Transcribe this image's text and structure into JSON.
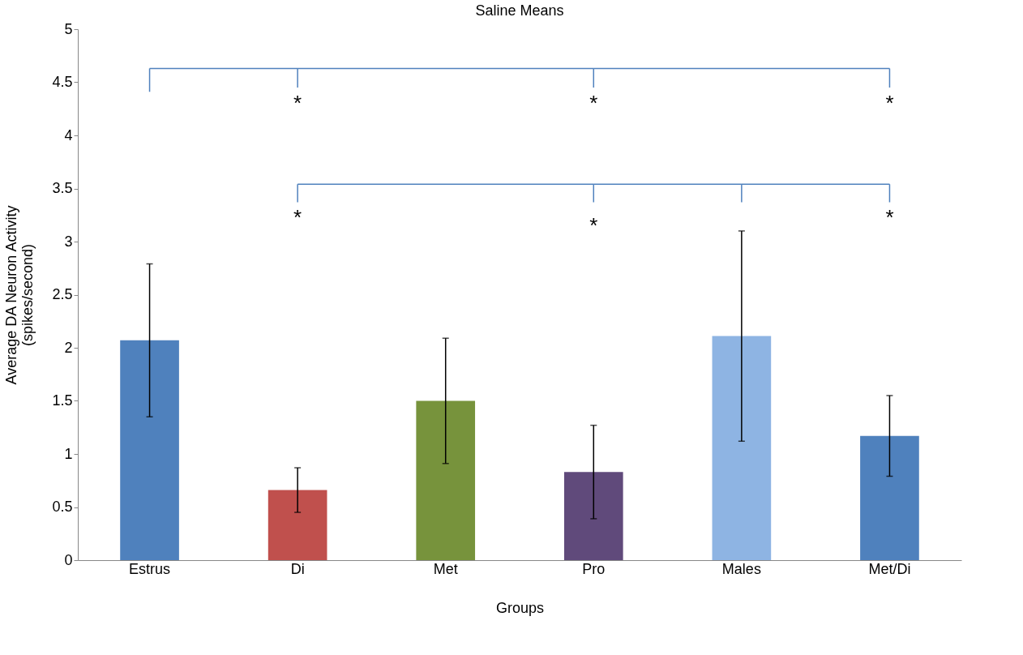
{
  "chart_data": {
    "type": "bar",
    "title": "Saline Means",
    "xlabel": "Groups",
    "ylabel": "Average DA Neuron Activity\n(spikes/second)",
    "categories": [
      "Estrus",
      "Di",
      "Met",
      "Pro",
      "Males",
      "Met/Di"
    ],
    "values": [
      2.07,
      0.66,
      1.5,
      0.83,
      2.11,
      1.17
    ],
    "errors": [
      0.72,
      0.21,
      0.59,
      0.44,
      0.99,
      0.38
    ],
    "colors": [
      "#4f81bd",
      "#c0504d",
      "#77933c",
      "#604a7b",
      "#8eb4e3",
      "#4f81bd"
    ],
    "ylim": [
      0,
      5
    ],
    "yticks": [
      0,
      0.5,
      1,
      1.5,
      2,
      2.5,
      3,
      3.5,
      4,
      4.5,
      5
    ],
    "grid": false,
    "annotations": [
      "*",
      "*",
      "*",
      "*",
      "*",
      "*"
    ]
  }
}
